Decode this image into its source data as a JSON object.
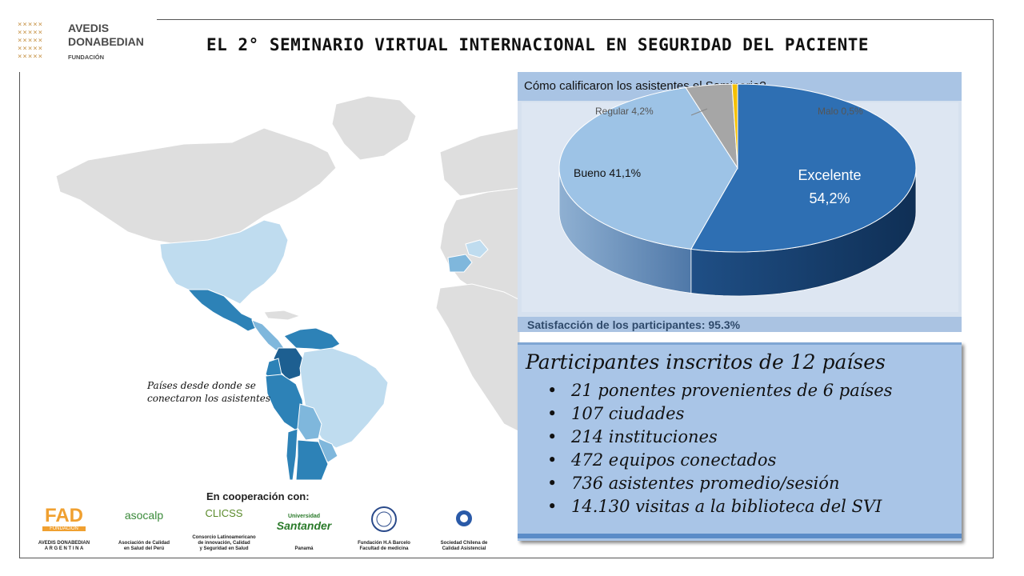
{
  "logo": {
    "glyphs": "×××××\n×××××\n×××××\n×××××\n×××××",
    "name_line1": "AVEDIS",
    "name_line2": "DONABEDIAN",
    "sub": "FUNDACIÓN"
  },
  "title": "EL 2° SEMINARIO VIRTUAL INTERNACIONAL EN SEGURIDAD DEL PACIENTE",
  "map": {
    "caption_line1": "Países desde donde se",
    "caption_line2": "conectaron los asistentes",
    "colors": {
      "land": "#dedede",
      "light": "#bfdcef",
      "mid": "#7fb7dc",
      "dark": "#2d82b7",
      "darkest": "#1d5f91"
    }
  },
  "cooperation": {
    "title": "En cooperación con:",
    "partners": [
      {
        "logo_text": "FAD",
        "logo_sub": "FUNDACIÓN",
        "label1": "AVEDIS DONABEDIAN",
        "label2": "A R G E N T I N A"
      },
      {
        "logo_text": "asocalp",
        "label1": "Asociación de Calidad",
        "label2": "en Salud del Perú"
      },
      {
        "logo_text": "CLICSS",
        "label1": "Consorcio Latinoamericano",
        "label2": "de innovación, Calidad",
        "label3": "y Seguridad en Salud"
      },
      {
        "logo_text": "Santander",
        "logo_sub": "Universidad",
        "label1": "Panamá"
      },
      {
        "logo_text": "",
        "label1": "Fundación H.A Barcelo",
        "label2": "Facultad de medicina"
      },
      {
        "logo_text": "",
        "logo_sub": "Sociedad Chilena de Calidad Asistencial",
        "label1": "Sociedad Chilena de",
        "label2": "Calidad Asistencial"
      }
    ]
  },
  "chart_data": {
    "type": "pie",
    "title": "Cómo calificaron los asistentes el Seminario?",
    "slices": [
      {
        "label": "Excelente",
        "value": 54.2,
        "display": "54,2%",
        "color": "#2e6fb3"
      },
      {
        "label": "Bueno",
        "value": 41.1,
        "display": "41,1%",
        "color": "#9dc3e6"
      },
      {
        "label": "Regular",
        "value": 4.2,
        "display": "4,2%",
        "color": "#a6a6a6"
      },
      {
        "label": "Malo",
        "value": 0.5,
        "display": "0,5%",
        "color": "#f5c000"
      }
    ],
    "labels": {
      "excelente_name": "Excelente",
      "excelente_value": "54,2%",
      "bueno": "Bueno 41,1%",
      "regular": "Regular 4,2%",
      "malo": "Malo 0,5%"
    },
    "legend": "none"
  },
  "satisfaction": "Satisfacción de los participantes:  95.3%",
  "stats": {
    "heading": "Participantes inscritos de 12 países",
    "bullet": "•",
    "items": [
      "21 ponentes provenientes de 6 países",
      "107 ciudades",
      "214 instituciones",
      "472 equipos conectados",
      "736 asistentes promedio/sesión",
      "14.130 visitas a la biblioteca del SVI"
    ]
  }
}
